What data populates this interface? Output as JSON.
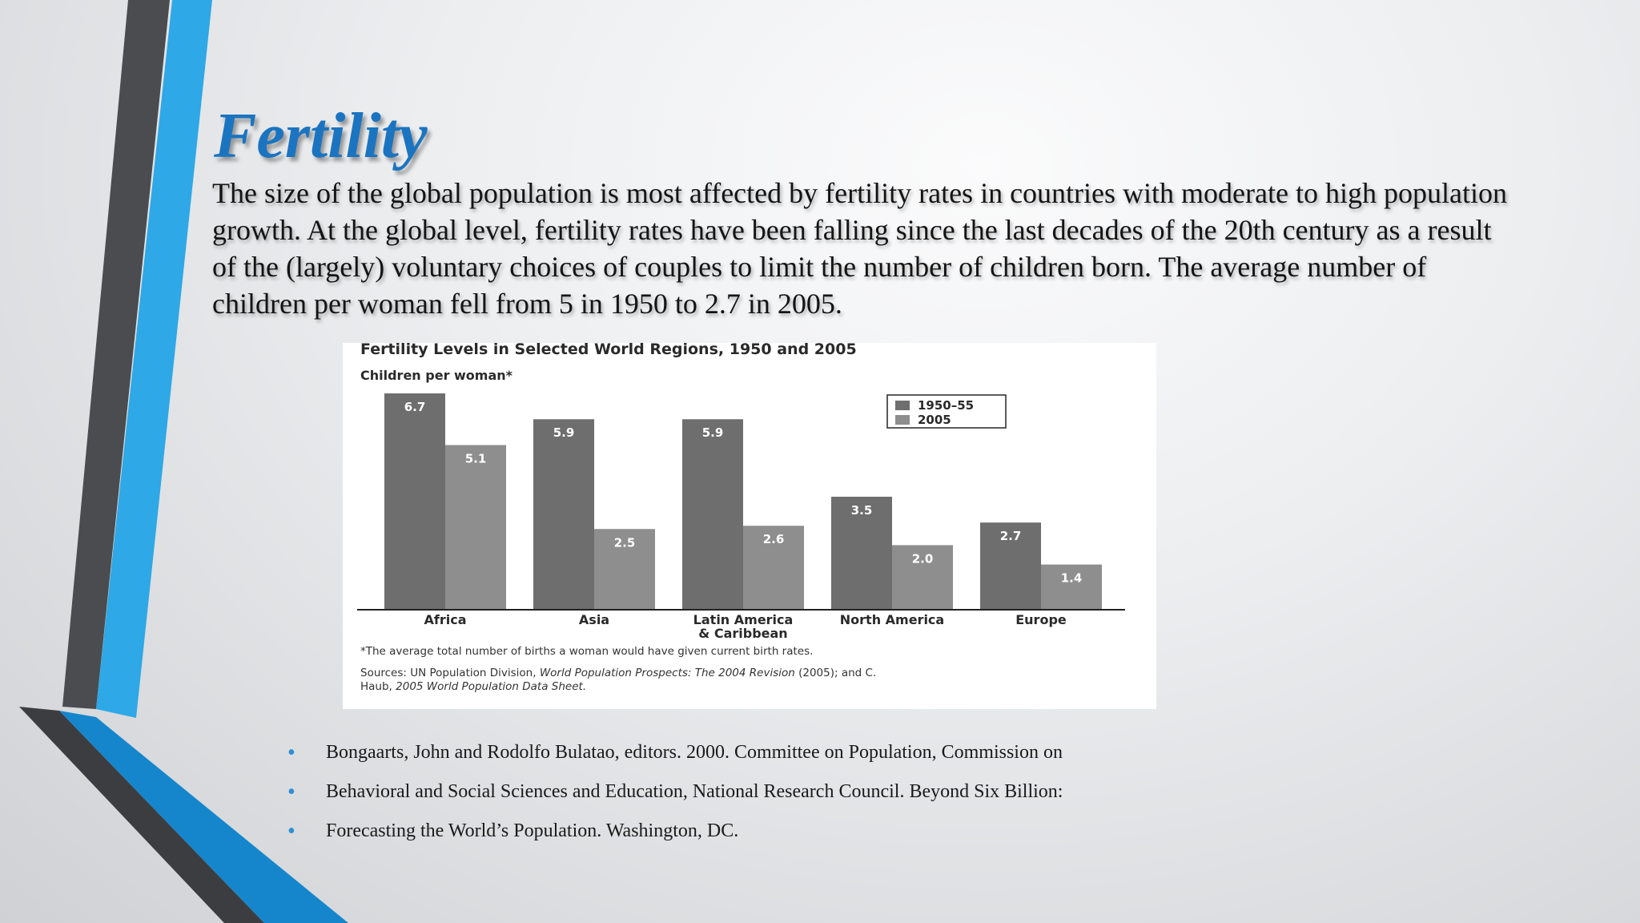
{
  "slide": {
    "title": "Fertility",
    "body": "The size of the global population is most affected by fertility rates in countries with moderate to high population growth. At the global level, fertility rates have been falling since the last decades of the 20th century as a result of the (largely) voluntary choices of couples to limit the number of children born. The average number of children per woman fell from 5 in 1950 to 2.7 in 2005.",
    "references": [
      "Bongaarts, John and Rodolfo Bulatao, editors. 2000. Committee on Population, Commission on",
      "Behavioral and Social Sciences and Education, National Research Council. Beyond Six Billion:",
      "Forecasting the World’s Population. Washington, DC."
    ],
    "bullet_glyph": "•"
  },
  "colors": {
    "title": "#1b74c0",
    "accent_blue": "#2ea8e6",
    "accent_dark": "#4a4c4f",
    "bar_1950": "#6e6e6e",
    "bar_2005": "#8e8e8e"
  },
  "chart_data": {
    "type": "bar",
    "title": "Fertility Levels in Selected World Regions, 1950 and 2005",
    "ylabel": "Children per woman*",
    "xlabel": "",
    "categories": [
      [
        "Africa"
      ],
      [
        "Asia"
      ],
      [
        "Latin America",
        "& Caribbean"
      ],
      [
        "North America"
      ],
      [
        "Europe"
      ]
    ],
    "series": [
      {
        "name": "1950–55",
        "values": [
          6.7,
          5.9,
          5.9,
          3.5,
          2.7
        ],
        "labels": [
          "6.7",
          "5.9",
          "5.9",
          "3.5",
          "2.7"
        ],
        "color": "#6e6e6e"
      },
      {
        "name": "2005",
        "values": [
          5.1,
          2.5,
          2.6,
          2.0,
          1.4
        ],
        "labels": [
          "5.1",
          "2.5",
          "2.6",
          "2.0",
          "1.4"
        ],
        "color": "#8e8e8e"
      }
    ],
    "ylim": [
      0,
      7
    ],
    "grid": false,
    "legend_position": "top-right",
    "footnote": "*The average total number of births a woman would have given current birth rates.",
    "sources_line1": [
      {
        "text": "Sources: UN Population Division, ",
        "italic": false
      },
      {
        "text": "World Population Prospects: The 2004 Revision",
        "italic": true
      },
      {
        "text": " (2005); and C.",
        "italic": false
      }
    ],
    "sources_line2": [
      {
        "text": "Haub, ",
        "italic": false
      },
      {
        "text": "2005 World Population Data Sheet.",
        "italic": true
      }
    ]
  }
}
